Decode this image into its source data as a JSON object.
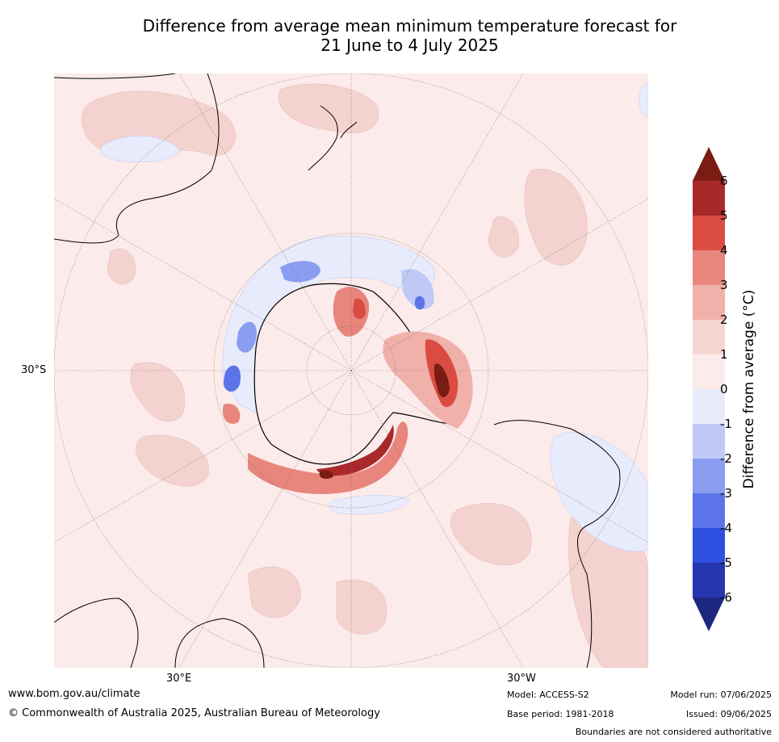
{
  "title_line1": "Difference from average mean minimum temperature forecast for",
  "title_line2": "21 June to 4 July 2025",
  "map": {
    "lat_label": "30°S",
    "lon_labels": [
      "30°E",
      "30°W"
    ],
    "background_color": "#fbebea"
  },
  "colorbar": {
    "label": "Difference from average (°C)",
    "ticks": [
      "6",
      "5",
      "4",
      "3",
      "2",
      "1",
      "0",
      "-1",
      "-2",
      "-3",
      "-4",
      "-5",
      "-6"
    ],
    "colors": [
      "#7a1c14",
      "#a9292a",
      "#da4c41",
      "#e8867e",
      "#f0b1ab",
      "#f6d6d3",
      "#fbebea",
      "#e7ebfb",
      "#c0c8f5",
      "#8a9df0",
      "#5c74e8",
      "#2f4fe0",
      "#2636b0",
      "#1c2880"
    ]
  },
  "footer": {
    "url": "www.bom.gov.au/climate",
    "copyright": "© Commonwealth of Australia 2025, Australian Bureau of Meteorology",
    "model": "Model: ACCESS-S2",
    "base_period": "Base period: 1981-2018",
    "model_run": "Model run: 07/06/2025",
    "issued": "Issued: 09/06/2025",
    "disclaimer": "Boundaries are not considered authoritative"
  }
}
